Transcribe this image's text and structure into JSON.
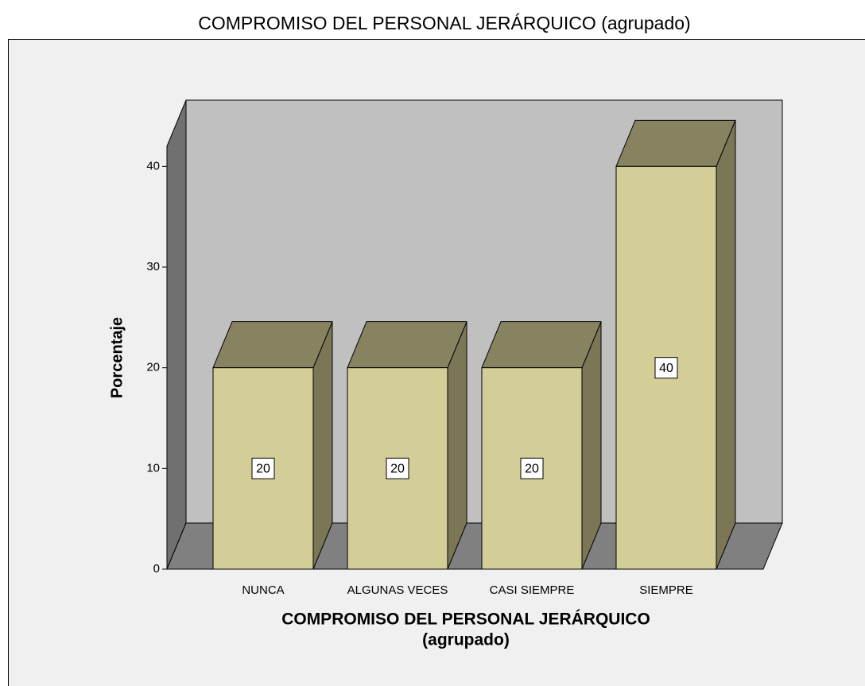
{
  "chart_data": {
    "type": "bar3d",
    "title": "COMPROMISO DEL PERSONAL JERÁRQUICO (agrupado)",
    "x_label": [
      "COMPROMISO DEL PERSONAL JERÁRQUICO",
      "(agrupado)"
    ],
    "y_label": "Porcentaje",
    "categories": [
      "NUNCA",
      "ALGUNAS VECES",
      "CASI SIEMPRE",
      "SIEMPRE"
    ],
    "values": [
      20,
      20,
      20,
      40
    ],
    "color": "#d3cd98",
    "ylim": [
      0,
      42
    ],
    "yticks": [
      0,
      10,
      20,
      30,
      40
    ]
  }
}
